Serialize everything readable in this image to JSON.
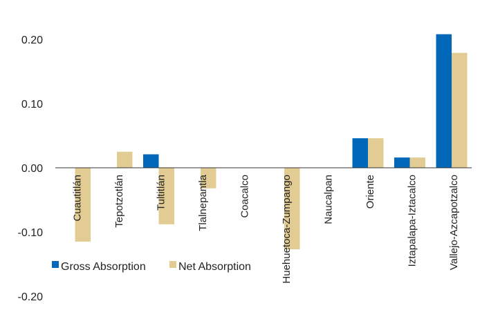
{
  "chart_data": {
    "type": "bar",
    "categories": [
      "Cuautitlán",
      "Tepotzotlán",
      "Tultitlán",
      "Tlalnepantla",
      "Coacalco",
      "Huehuetoca-Zumpango",
      "Naucalpan",
      "Oriente",
      "Iztapalapa-Iztacalco",
      "Vallejo-Azcapotzalco"
    ],
    "series": [
      {
        "name": "Gross Absorption",
        "color": "#0067b9",
        "values": [
          0.0,
          0.0,
          0.021,
          0.0,
          0.0,
          0.0,
          0.0,
          0.046,
          0.016,
          0.208
        ]
      },
      {
        "name": "Net Absorption",
        "color": "#e3cc94",
        "values": [
          -0.115,
          0.025,
          -0.088,
          -0.032,
          0.0,
          -0.127,
          0.0,
          0.046,
          0.016,
          0.179
        ]
      }
    ],
    "yticks": [
      "0.20",
      "0.10",
      "0.00",
      "-0.10",
      "-0.20"
    ],
    "ytick_values": [
      0.2,
      0.1,
      0.0,
      -0.1,
      -0.2
    ],
    "ylim": [
      -0.2,
      0.2
    ],
    "legend_position": "lower-left",
    "grid": false
  }
}
